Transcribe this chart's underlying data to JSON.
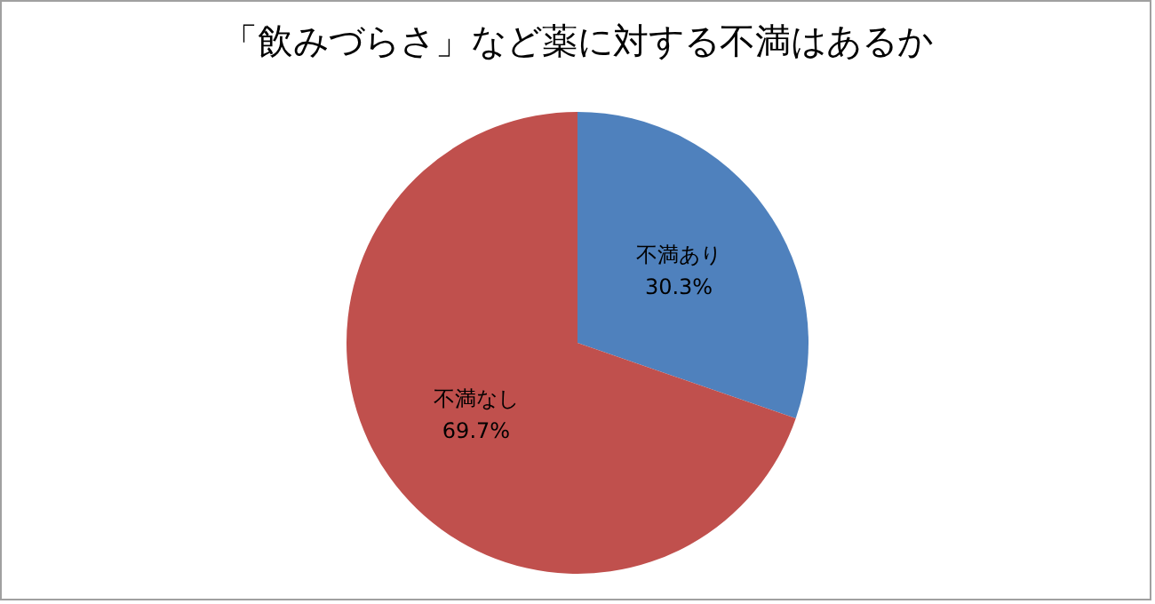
{
  "chart_data": {
    "type": "pie",
    "title": "「飲みづらさ」など薬に対する不満はあるか",
    "categories": [
      "不満あり",
      "不満なし"
    ],
    "values": [
      30.3,
      69.7
    ],
    "colors": [
      "#4f81bd",
      "#c0504d"
    ],
    "value_labels": [
      "30.3%",
      "69.7%"
    ]
  }
}
